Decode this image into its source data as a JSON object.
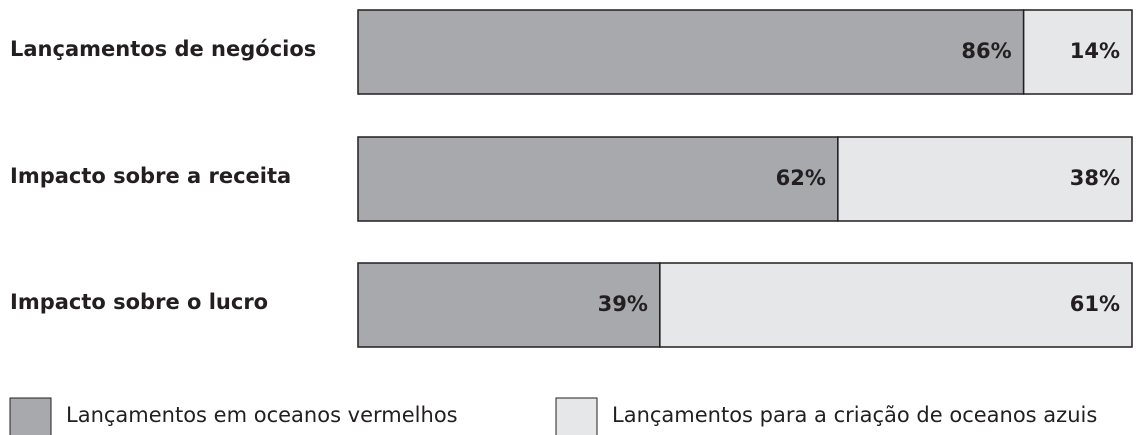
{
  "chart_data": {
    "type": "stacked-bar-horizontal",
    "categories": [
      "Lançamentos de negócios",
      "Impacto sobre a receita",
      "Impacto sobre o lucro"
    ],
    "series": [
      {
        "name": "Lançamentos em oceanos vermelhos",
        "color": "#a7a9ac",
        "values": [
          86,
          62,
          39
        ],
        "value_labels": [
          "86%",
          "62%",
          "39%"
        ]
      },
      {
        "name": "Lançamentos para a criação de oceanos azuis",
        "color": "#e6e7e8",
        "values": [
          14,
          38,
          61
        ],
        "value_labels": [
          "14%",
          "38%",
          "61%"
        ]
      }
    ],
    "xlim": [
      0,
      100
    ]
  }
}
